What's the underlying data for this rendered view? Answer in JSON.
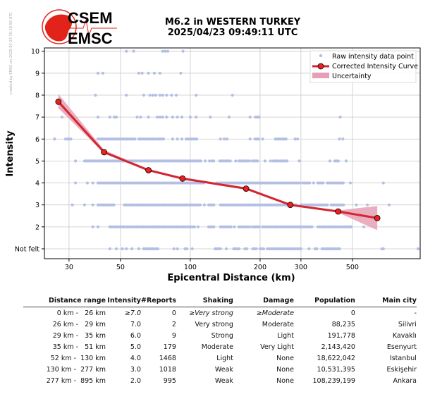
{
  "side_note": "created by EMSC on 2025-04-23 15:18:58 UTC",
  "logo": {
    "line1": "CSEM",
    "line2": "EMSC",
    "red": "#e2231a"
  },
  "title": {
    "line1": "M6.2 in WESTERN TURKEY",
    "line2": "2025/04/23 09:49:11 UTC"
  },
  "chart_data": {
    "type": "scatter",
    "xlabel": "Epicentral Distance (km)",
    "ylabel": "Intensity",
    "xscale": "log",
    "xlim": [
      23.5,
      980
    ],
    "xticks": [
      30,
      50,
      100,
      200,
      300,
      500
    ],
    "xtick_labels": [
      "30",
      "50",
      "100",
      "200",
      "300",
      "500"
    ],
    "yticks": [
      1,
      2,
      3,
      4,
      5,
      6,
      7,
      8,
      9,
      10
    ],
    "ytick_labels": [
      "Not felt",
      "2",
      "3",
      "4",
      "5",
      "6",
      "7",
      "8",
      "9",
      "10"
    ],
    "ylim": [
      0.55,
      10.15
    ],
    "grid": true,
    "legend": {
      "position": "top-right",
      "entries": [
        "Raw intensity data point",
        "Corrected Intensity Curve",
        "Uncertainty"
      ]
    },
    "colors": {
      "raw": "#b3bfe3",
      "curve": "#d42630",
      "marker": "#ee2020",
      "band": "#e6a0b6"
    },
    "raw_points": {
      "10": {
        "points": [
          53,
          57,
          76,
          78,
          80,
          93
        ],
        "ranges": []
      },
      "9": {
        "points": [
          40,
          42,
          60,
          62,
          66,
          70,
          74,
          91
        ],
        "ranges": []
      },
      "8": {
        "points": [
          39,
          53,
          63,
          67,
          69,
          71,
          74,
          76,
          79,
          83,
          87,
          106,
          152
        ],
        "ranges": []
      },
      "7": {
        "points": [
          28,
          40,
          45,
          47,
          48,
          59,
          61,
          66,
          72,
          74,
          76,
          79,
          84,
          88,
          92,
          100,
          106,
          122,
          147,
          181,
          443
        ],
        "ranges": [
          [
            191,
            198
          ]
        ]
      },
      "6": {
        "points": [
          26,
          84,
          88,
          92,
          135,
          140,
          144,
          181,
          205,
          283,
          290,
          440,
          455
        ],
        "ranges": [
          [
            29,
            31
          ],
          [
            40,
            58
          ],
          [
            60,
            78
          ],
          [
            96,
            108
          ],
          [
            190,
            199
          ],
          [
            233,
            262
          ]
        ]
      },
      "5": {
        "points": [
          32,
          116,
          121,
          157,
          210,
          222,
          295,
          400,
          470
        ],
        "ranges": [
          [
            35,
            112
          ],
          [
            124,
            128
          ],
          [
            134,
            150
          ],
          [
            162,
            180
          ],
          [
            185,
            197
          ],
          [
            228,
            245
          ],
          [
            248,
            265
          ],
          [
            420,
            440
          ]
        ]
      },
      "4": {
        "points": [
          32,
          36,
          38,
          340,
          490,
          680
        ],
        "ranges": [
          [
            40,
            115
          ],
          [
            130,
            300
          ],
          [
            305,
            330
          ],
          [
            355,
            375
          ],
          [
            390,
            460
          ]
        ]
      },
      "3": {
        "points": [
          31,
          35,
          38,
          115,
          520,
          580,
          720
        ],
        "ranges": [
          [
            40,
            47
          ],
          [
            52,
            112
          ],
          [
            120,
            128
          ],
          [
            135,
            195
          ],
          [
            198,
            290
          ],
          [
            300,
            340
          ],
          [
            345,
            390
          ],
          [
            405,
            460
          ]
        ]
      },
      "2": {
        "points": [
          38,
          40,
          108,
          155,
          560
        ],
        "ranges": [
          [
            45,
            106
          ],
          [
            120,
            128
          ],
          [
            135,
            150
          ],
          [
            162,
            180
          ],
          [
            185,
            200
          ],
          [
            205,
            340
          ],
          [
            355,
            410
          ],
          [
            415,
            495
          ]
        ]
      },
      "1": {
        "points": [
          45,
          48,
          51,
          53,
          56,
          60,
          85,
          88,
          102,
          143,
          325,
          670,
          680,
          960
        ],
        "ranges": [
          [
            63,
            73
          ],
          [
            95,
            98
          ],
          [
            128,
            137
          ],
          [
            154,
            165
          ],
          [
            172,
            178
          ],
          [
            186,
            193
          ],
          [
            200,
            210
          ],
          [
            215,
            300
          ],
          [
            345,
            355
          ],
          [
            370,
            435
          ],
          [
            440,
            445
          ]
        ]
      }
    },
    "curve": {
      "x": [
        27,
        42.5,
        66,
        92.6,
        174,
        270,
        434,
        640
      ],
      "y": [
        7.7,
        5.4,
        4.58,
        4.2,
        3.74,
        3.0,
        2.7,
        2.4
      ]
    },
    "uncertainty": {
      "lower": [
        7.4,
        5.35,
        4.54,
        4.15,
        3.7,
        2.97,
        2.65,
        1.85
      ],
      "upper": [
        8.05,
        5.5,
        4.64,
        4.26,
        3.8,
        3.05,
        2.75,
        2.95
      ]
    }
  },
  "table": {
    "headers": [
      "Distance range",
      "Intensity",
      "#Reports",
      "Shaking",
      "Damage",
      "Population",
      "Main city"
    ],
    "rows": [
      [
        "0 km -   26 km",
        "≥7.0",
        "0",
        "≥Very strong",
        "≥Moderate",
        "0",
        "-"
      ],
      [
        "26 km -   29 km",
        "7.0",
        "2",
        "Very strong",
        "Moderate",
        "88,235",
        "Silivri"
      ],
      [
        "29 km -   35 km",
        "6.0",
        "9",
        "Strong",
        "Light",
        "191,778",
        "Kavaklı"
      ],
      [
        "35 km -   51 km",
        "5.0",
        "179",
        "Moderate",
        "Very Light",
        "2,143,420",
        "Esenyurt"
      ],
      [
        "52 km -  130 km",
        "4.0",
        "1468",
        "Light",
        "None",
        "18,622,042",
        "Istanbul"
      ],
      [
        "130 km -  277 km",
        "3.0",
        "1018",
        "Weak",
        "None",
        "10,531,395",
        "Eskişehir"
      ],
      [
        "277 km -  895 km",
        "2.0",
        "995",
        "Weak",
        "None",
        "108,239,199",
        "Ankara"
      ]
    ]
  }
}
